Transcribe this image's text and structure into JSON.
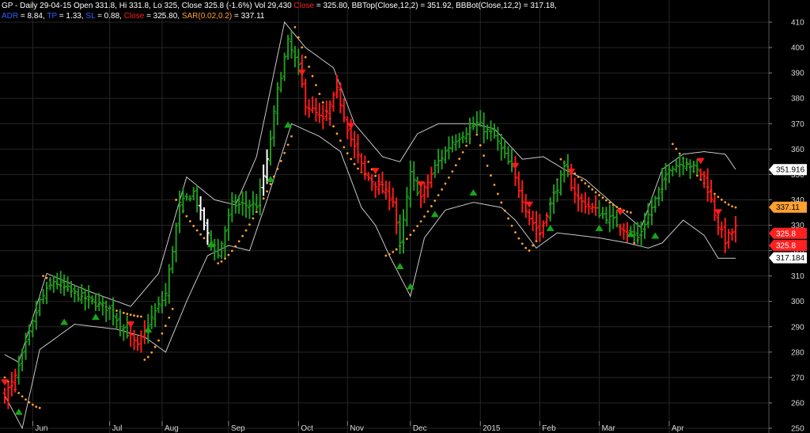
{
  "header": {
    "line1": {
      "ticker_info": "GP - Daily 29-04-15 Open 331.8, Hi 331.8, Lo 325, Close 325.8 (-1.6%) Vol 29,430",
      "close_label": "Close",
      "close_value": "= 325.80,",
      "bbtop": "BBTop(Close,12,2) = 351.92,",
      "bbbot": "BBBot(Close,12,2) = 317.18,"
    },
    "line2": {
      "adr_label": "ADR",
      "adr_value": "= 8.84,",
      "tp_label": "TP",
      "tp_value": "= 1.33,",
      "sl_label": "SL",
      "sl_value": "= 0.88,",
      "close_label": "Close",
      "close_value": "= 325.80,",
      "sar_label": "SAR(0.02,0.2)",
      "sar_value": "= 337.11"
    }
  },
  "colors": {
    "background": "#000000",
    "up_bar": "#1f9a1f",
    "down_bar": "#ff1a1a",
    "neutral_bar": "#ffffff",
    "bands": "#c8c8c8",
    "sar": "#ffa030",
    "grid": "#262626"
  },
  "chart_data": {
    "type": "ohlc",
    "ylim": [
      250,
      415
    ],
    "y_ticks": [
      250,
      260,
      270,
      280,
      290,
      300,
      310,
      320,
      330,
      340,
      350,
      360,
      370,
      380,
      390,
      400,
      410
    ],
    "x_labels": [
      "Jun",
      "Jul",
      "Aug",
      "Sep",
      "Oct",
      "Nov",
      "Dec",
      "2015",
      "Feb",
      "Mar",
      "Apr"
    ],
    "x_label_bar_index": [
      8,
      30,
      45,
      64,
      84,
      98,
      116,
      136,
      153,
      170,
      190
    ],
    "bar_count": 210,
    "price_path_anchors": [
      [
        0,
        263
      ],
      [
        3,
        270
      ],
      [
        10,
        300
      ],
      [
        14,
        308
      ],
      [
        20,
        303
      ],
      [
        30,
        297
      ],
      [
        38,
        282
      ],
      [
        41,
        291
      ],
      [
        46,
        303
      ],
      [
        50,
        338
      ],
      [
        54,
        343
      ],
      [
        58,
        326
      ],
      [
        61,
        318
      ],
      [
        65,
        338
      ],
      [
        72,
        338
      ],
      [
        75,
        355
      ],
      [
        78,
        383
      ],
      [
        81,
        402
      ],
      [
        84,
        392
      ],
      [
        86,
        378
      ],
      [
        91,
        371
      ],
      [
        95,
        383
      ],
      [
        99,
        364
      ],
      [
        103,
        350
      ],
      [
        107,
        345
      ],
      [
        111,
        340
      ],
      [
        113,
        322
      ],
      [
        116,
        350
      ],
      [
        119,
        341
      ],
      [
        123,
        353
      ],
      [
        128,
        363
      ],
      [
        135,
        370
      ],
      [
        140,
        365
      ],
      [
        145,
        352
      ],
      [
        150,
        333
      ],
      [
        153,
        327
      ],
      [
        155,
        335
      ],
      [
        160,
        352
      ],
      [
        164,
        340
      ],
      [
        170,
        335
      ],
      [
        176,
        330
      ],
      [
        181,
        325
      ],
      [
        186,
        340
      ],
      [
        190,
        353
      ],
      [
        195,
        355
      ],
      [
        200,
        349
      ],
      [
        204,
        330
      ],
      [
        206,
        324
      ],
      [
        209,
        329
      ]
    ],
    "bb_top_anchors": [
      [
        0,
        279
      ],
      [
        4,
        276
      ],
      [
        12,
        311
      ],
      [
        24,
        304
      ],
      [
        36,
        298
      ],
      [
        44,
        311
      ],
      [
        52,
        349
      ],
      [
        60,
        340
      ],
      [
        66,
        338
      ],
      [
        72,
        357
      ],
      [
        80,
        410
      ],
      [
        86,
        400
      ],
      [
        94,
        392
      ],
      [
        100,
        370
      ],
      [
        108,
        357
      ],
      [
        113,
        355
      ],
      [
        118,
        366
      ],
      [
        124,
        370
      ],
      [
        134,
        370
      ],
      [
        140,
        368
      ],
      [
        148,
        356
      ],
      [
        154,
        357
      ],
      [
        160,
        352
      ],
      [
        166,
        348
      ],
      [
        176,
        336
      ],
      [
        182,
        329
      ],
      [
        188,
        352
      ],
      [
        194,
        358
      ],
      [
        200,
        359
      ],
      [
        206,
        358
      ],
      [
        209,
        352
      ]
    ],
    "bb_bot_anchors": [
      [
        0,
        263
      ],
      [
        5,
        250
      ],
      [
        10,
        281
      ],
      [
        20,
        291
      ],
      [
        32,
        289
      ],
      [
        40,
        286
      ],
      [
        46,
        280
      ],
      [
        52,
        300
      ],
      [
        58,
        318
      ],
      [
        64,
        322
      ],
      [
        70,
        320
      ],
      [
        75,
        340
      ],
      [
        82,
        370
      ],
      [
        90,
        365
      ],
      [
        96,
        359
      ],
      [
        102,
        337
      ],
      [
        106,
        330
      ],
      [
        110,
        318
      ],
      [
        116,
        302
      ],
      [
        120,
        325
      ],
      [
        126,
        336
      ],
      [
        134,
        339
      ],
      [
        142,
        337
      ],
      [
        146,
        332
      ],
      [
        152,
        321
      ],
      [
        158,
        327
      ],
      [
        164,
        326
      ],
      [
        170,
        325
      ],
      [
        178,
        323
      ],
      [
        184,
        321
      ],
      [
        188,
        323
      ],
      [
        194,
        332
      ],
      [
        200,
        326
      ],
      [
        204,
        317
      ],
      [
        208,
        317
      ]
    ],
    "sar_segments": [
      {
        "start": 0,
        "end": 10,
        "start_val": 270,
        "end_val": 258,
        "side": "above"
      },
      {
        "start": 11,
        "end": 39,
        "start_val": 310,
        "end_val": 294,
        "side": "above"
      },
      {
        "start": 40,
        "end": 48,
        "start_val": 277,
        "end_val": 297,
        "side": "below"
      },
      {
        "start": 49,
        "end": 60,
        "start_val": 340,
        "end_val": 322,
        "side": "above"
      },
      {
        "start": 61,
        "end": 82,
        "start_val": 315,
        "end_val": 365,
        "side": "below"
      },
      {
        "start": 83,
        "end": 103,
        "start_val": 408,
        "end_val": 350,
        "side": "above"
      },
      {
        "start": 104,
        "end": 108,
        "start_val": 355,
        "end_val": 346,
        "side": "above"
      },
      {
        "start": 109,
        "end": 133,
        "start_val": 318,
        "end_val": 364,
        "side": "below"
      },
      {
        "start": 134,
        "end": 150,
        "start_val": 370,
        "end_val": 320,
        "side": "above"
      },
      {
        "start": 151,
        "end": 158,
        "start_val": 322,
        "end_val": 348,
        "side": "below"
      },
      {
        "start": 159,
        "end": 179,
        "start_val": 356,
        "end_val": 335,
        "side": "above"
      },
      {
        "start": 180,
        "end": 190,
        "start_val": 323,
        "end_val": 352,
        "side": "below"
      },
      {
        "start": 191,
        "end": 209,
        "start_val": 362,
        "end_val": 337,
        "side": "above"
      }
    ],
    "buy_signals": [
      4,
      17,
      26,
      41,
      59,
      76,
      81,
      113,
      116,
      123,
      134,
      156,
      170,
      179,
      186
    ],
    "sell_signals": [
      0,
      36,
      85,
      99,
      106,
      119,
      146,
      150,
      162,
      176,
      199,
      204
    ],
    "right_markers": [
      {
        "value": "351.916",
        "price": 351.916,
        "bg": "#ffffff",
        "fg": "#000000"
      },
      {
        "value": "337.11",
        "price": 337.11,
        "bg": "#ffa030",
        "fg": "#000000"
      },
      {
        "value": "325.8",
        "price": 326.8,
        "bg": "#ff2020",
        "fg": "#ffffff"
      },
      {
        "value": "325.8",
        "price": 322.0,
        "bg": "#ff2020",
        "fg": "#ffffff"
      },
      {
        "value": "317.184",
        "price": 317.184,
        "bg": "#ffffff",
        "fg": "#000000"
      }
    ]
  }
}
